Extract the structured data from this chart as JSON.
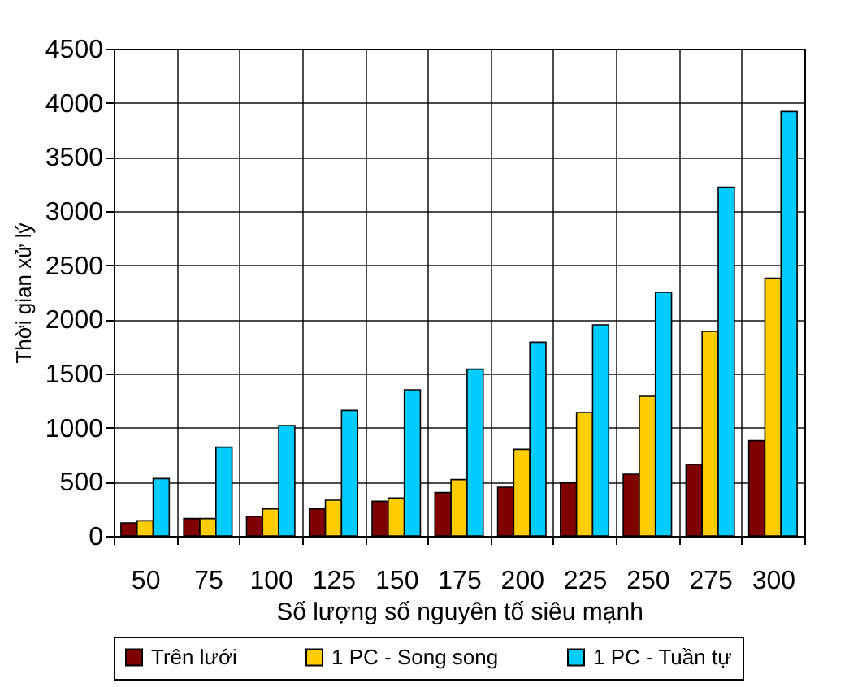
{
  "chart_data": {
    "type": "bar",
    "xlabel": "Số lượng số nguyên tố siêu mạnh",
    "ylabel": "Thời gian xử lý",
    "categories": [
      "50",
      "75",
      "100",
      "125",
      "150",
      "175",
      "200",
      "225",
      "250",
      "275",
      "300"
    ],
    "series": [
      {
        "name": "Trên lưới",
        "color": "#800000",
        "values": [
          120,
          160,
          180,
          250,
          320,
          400,
          450,
          490,
          570,
          660,
          880
        ]
      },
      {
        "name": "1 PC - Song song",
        "color": "#ffcc00",
        "values": [
          140,
          160,
          250,
          330,
          350,
          520,
          800,
          1140,
          1290,
          1890,
          2380
        ]
      },
      {
        "name": "1 PC - Tuần tự",
        "color": "#00ccff",
        "values": [
          530,
          820,
          1020,
          1160,
          1350,
          1540,
          1790,
          1950,
          2250,
          3220,
          3920
        ]
      }
    ],
    "ylim": [
      0,
      4500
    ],
    "yticks": [
      0,
      500,
      1000,
      1500,
      2000,
      2500,
      3000,
      3500,
      4000,
      4500
    ],
    "grid": true,
    "legend": "bottom"
  }
}
